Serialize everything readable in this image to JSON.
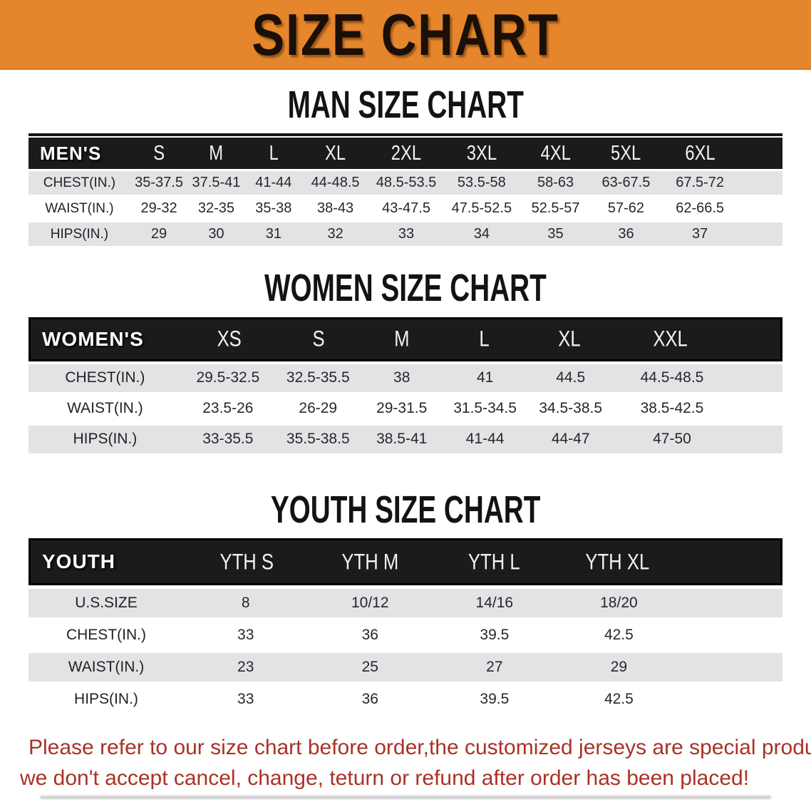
{
  "banner": {
    "title": "SIZE CHART"
  },
  "colors": {
    "banner_bg": "#e5862c",
    "table_header_bg": "#1b1b1b",
    "row_stripe": "#e3e3e5",
    "footer_text": "#a93226"
  },
  "sections": [
    {
      "heading": "MAN SIZE CHART",
      "table": {
        "header_label": "MEN'S",
        "columns": [
          "S",
          "M",
          "L",
          "XL",
          "2XL",
          "3XL",
          "4XL",
          "5XL",
          "6XL"
        ],
        "rows": [
          {
            "label": "CHEST(IN.)",
            "values": [
              "35-37.5",
              "37.5-41",
              "41-44",
              "44-48.5",
              "48.5-53.5",
              "53.5-58",
              "58-63",
              "63-67.5",
              "67.5-72"
            ]
          },
          {
            "label": "WAIST(IN.)",
            "values": [
              "29-32",
              "32-35",
              "35-38",
              "38-43",
              "43-47.5",
              "47.5-52.5",
              "52.5-57",
              "57-62",
              "62-66.5"
            ]
          },
          {
            "label": "HIPS(IN.)",
            "values": [
              "29",
              "30",
              "31",
              "32",
              "33",
              "34",
              "35",
              "36",
              "37"
            ]
          }
        ]
      }
    },
    {
      "heading": "WOMEN SIZE CHART",
      "table": {
        "header_label": "WOMEN'S",
        "columns": [
          "XS",
          "S",
          "M",
          "L",
          "XL",
          "XXL"
        ],
        "rows": [
          {
            "label": "CHEST(IN.)",
            "values": [
              "29.5-32.5",
              "32.5-35.5",
              "38",
              "41",
              "44.5",
              "44.5-48.5"
            ]
          },
          {
            "label": "WAIST(IN.)",
            "values": [
              "23.5-26",
              "26-29",
              "29-31.5",
              "31.5-34.5",
              "34.5-38.5",
              "38.5-42.5"
            ]
          },
          {
            "label": "HIPS(IN.)",
            "values": [
              "33-35.5",
              "35.5-38.5",
              "38.5-41",
              "41-44",
              "44-47",
              "47-50"
            ]
          }
        ]
      }
    },
    {
      "heading": "YOUTH SIZE CHART",
      "table": {
        "header_label": "YOUTH",
        "columns": [
          "YTH S",
          "YTH M",
          "YTH L",
          "YTH XL"
        ],
        "rows": [
          {
            "label": "U.S.SIZE",
            "values": [
              "8",
              "10/12",
              "14/16",
              "18/20"
            ]
          },
          {
            "label": "CHEST(IN.)",
            "values": [
              "33",
              "36",
              "39.5",
              "42.5"
            ]
          },
          {
            "label": "WAIST(IN.)",
            "values": [
              "23",
              "25",
              "27",
              "29"
            ]
          },
          {
            "label": "HIPS(IN.)",
            "values": [
              "33",
              "36",
              "39.5",
              "42.5"
            ]
          }
        ]
      }
    }
  ],
  "footer": {
    "line1": "Please refer to our size chart before order,the customized jerseys are special products,",
    "line2": "we don't accept cancel, change, teturn or refund after order has been placed!"
  }
}
